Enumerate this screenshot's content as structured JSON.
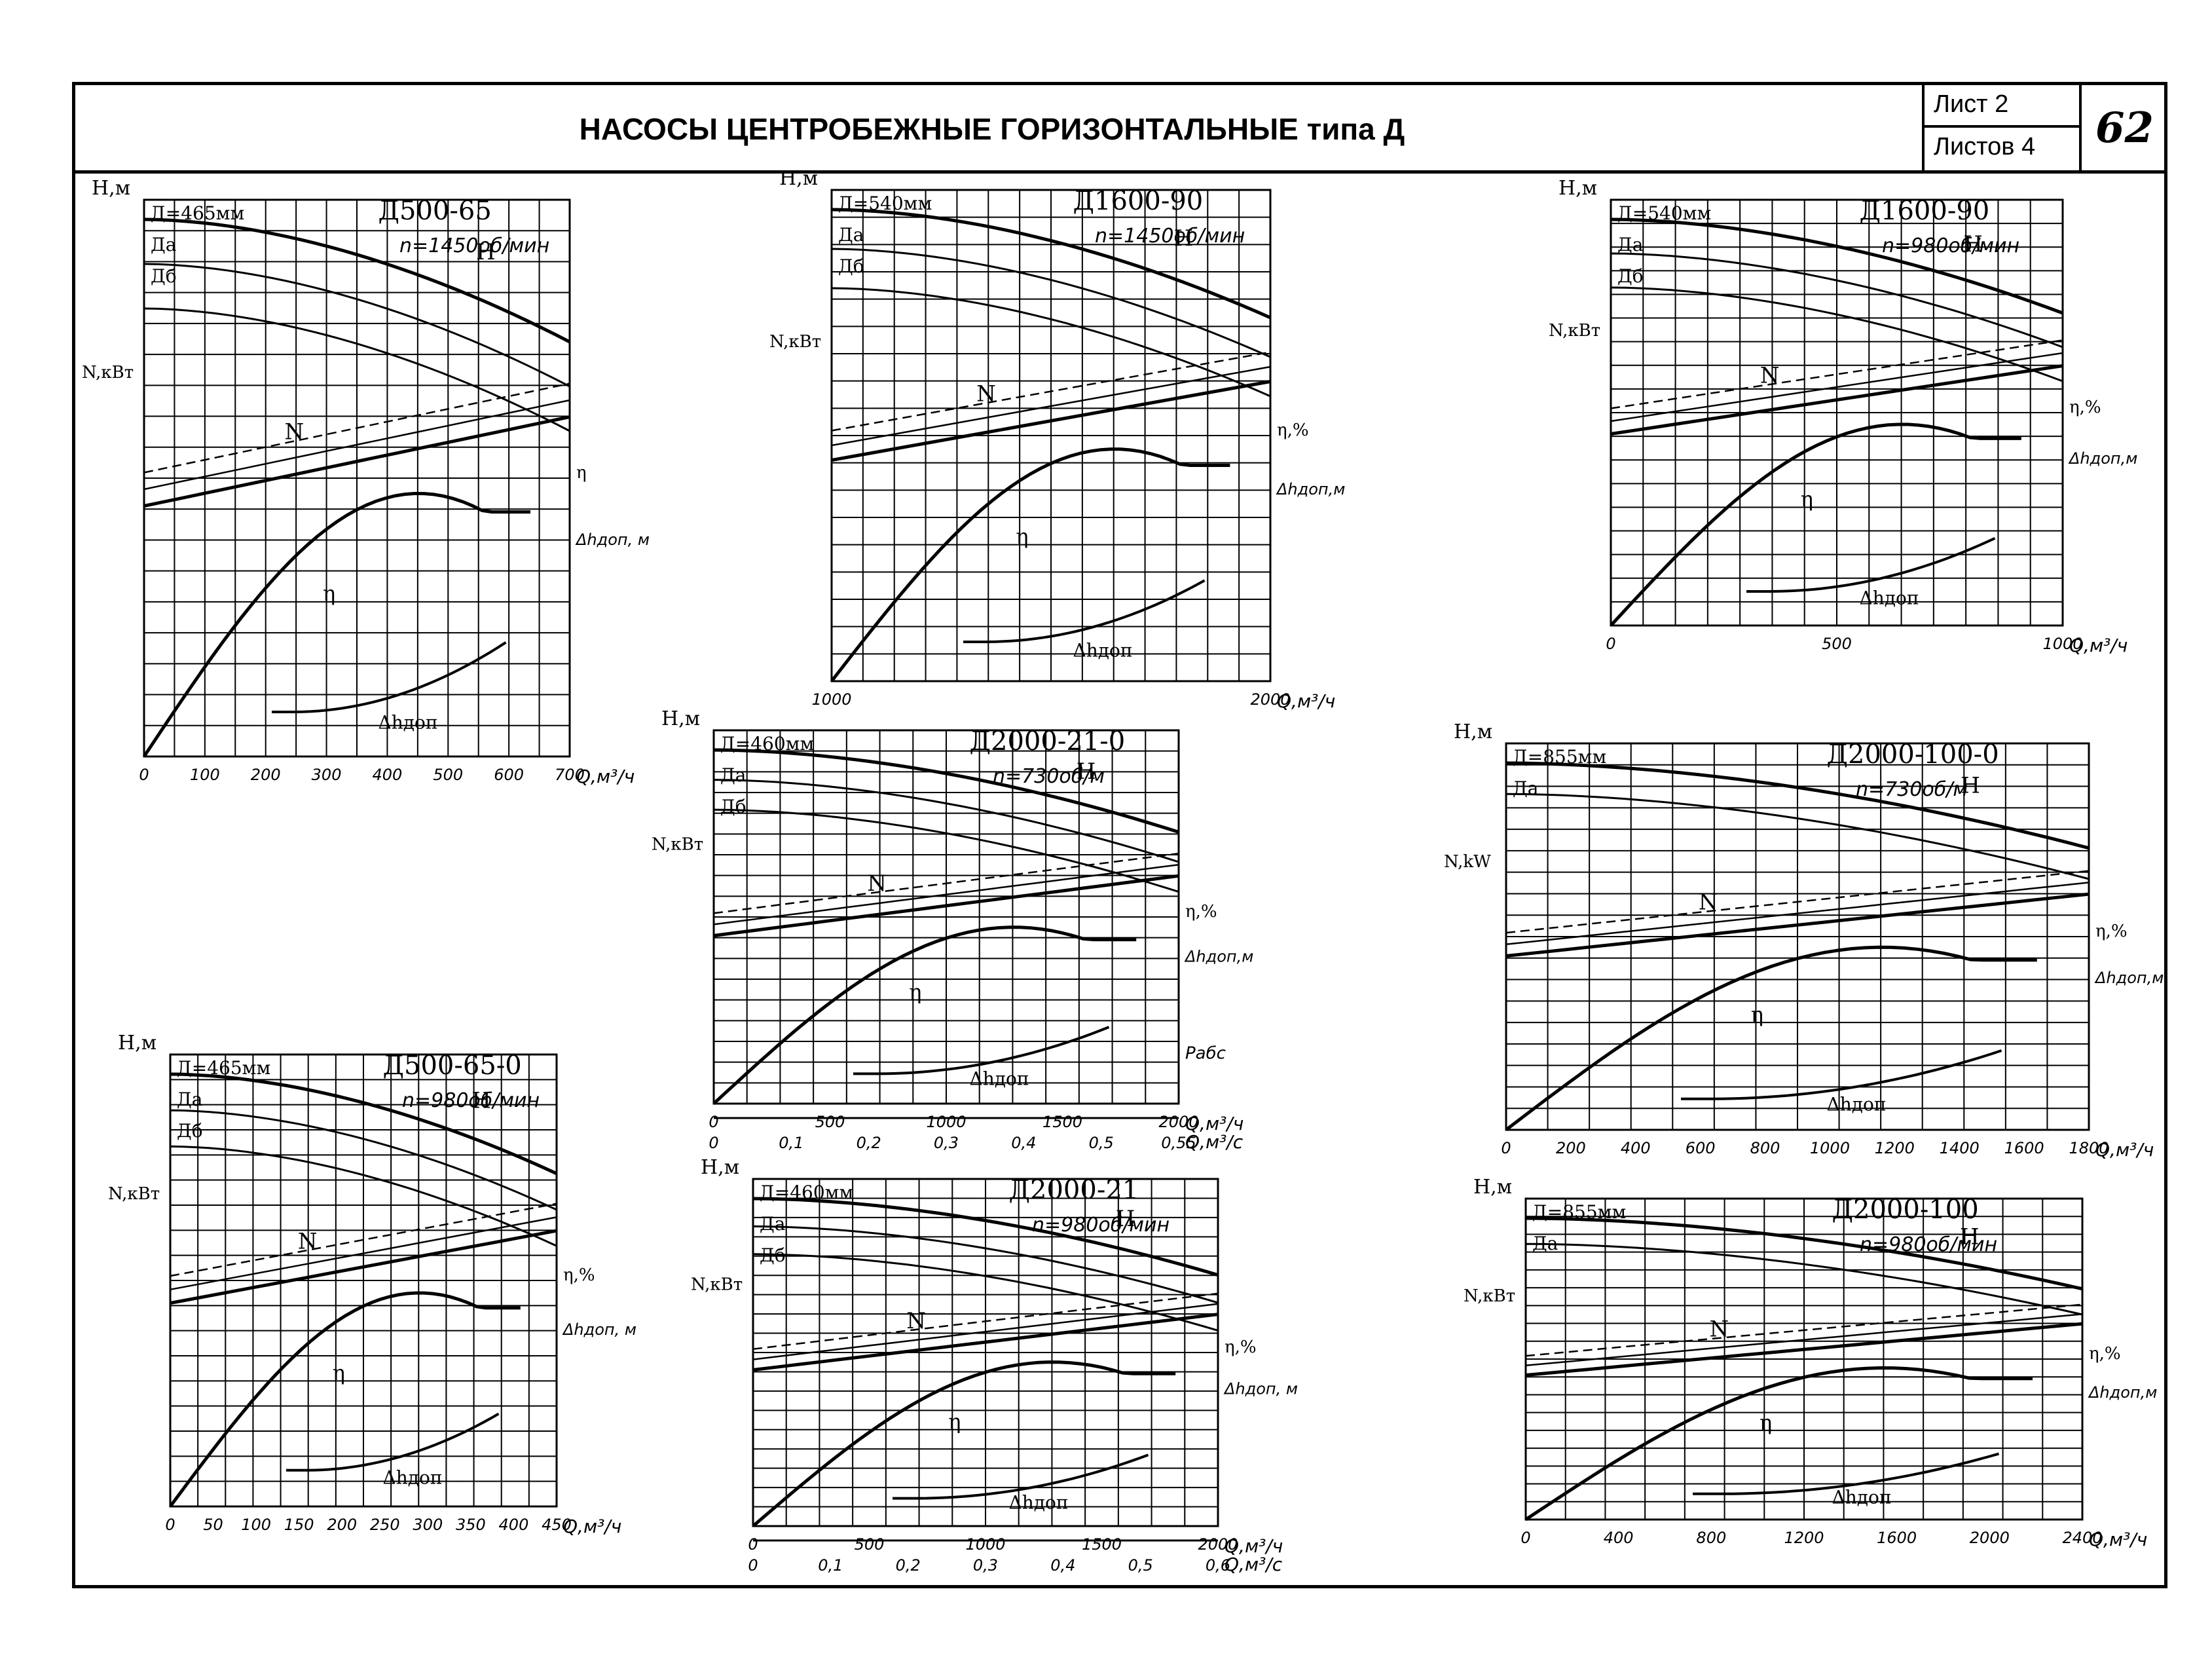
{
  "header": {
    "title": "НАСОСЫ ЦЕНТРОБЕЖНЫЕ ГОРИЗОНТАЛЬНЫЕ типа Д",
    "sheet_label": "Лист 2",
    "sheets_total_label": "Листов 4",
    "page_number": "62"
  },
  "charts": [
    {
      "model": "Д500-65",
      "speed": "n=1450об/мин",
      "h_axis": "Н,м",
      "n_axis": "N,кВт",
      "eta_axis": "η",
      "dh_axis": "Δhдоп, м",
      "q_axis": "Q,м³/ч",
      "impellers": [
        "Д=465мм",
        "Да",
        "Дб"
      ],
      "labels": {
        "H": "Н",
        "N": "N",
        "eta": "η",
        "dh": "Δhдоп"
      },
      "q_ticks": [
        "0",
        "100",
        "200",
        "300",
        "400",
        "500",
        "600",
        "700"
      ]
    },
    {
      "model": "Д1600-90",
      "speed": "n=1450об/мин",
      "h_axis": "Н,м",
      "n_axis": "N,кВт",
      "eta_axis": "η,%",
      "dh_axis": "Δhдоп,м",
      "q_axis": "Q,м³/ч",
      "impellers": [
        "Д=540мм",
        "Да",
        "Дб"
      ],
      "labels": {
        "H": "Н",
        "N": "N",
        "eta": "η",
        "dh": "Δhдоп"
      },
      "q_ticks": [
        "1000",
        "2000"
      ]
    },
    {
      "model": "Д1600-90",
      "speed": "n=980об/мин",
      "h_axis": "Н,м",
      "n_axis": "N,кВт",
      "eta_axis": "η,%",
      "dh_axis": "Δhдоп,м",
      "q_axis": "Q,м³/ч",
      "impellers": [
        "Д=540мм",
        "Да",
        "Дб"
      ],
      "labels": {
        "H": "Н",
        "N": "N",
        "eta": "η",
        "dh": "Δhдоп"
      },
      "q_ticks": [
        "0",
        "500",
        "1000"
      ]
    },
    {
      "model": "Д2000-21-0",
      "speed": "n=730об/м",
      "h_axis": "Н,м",
      "n_axis": "N,кВт",
      "eta_axis": "η,%",
      "dh_axis": "Δhдоп,м",
      "q_axis": "Q,м³/ч",
      "q2_axis": "Q,м³/с",
      "impellers": [
        "Д=460мм",
        "Да",
        "Дб"
      ],
      "labels": {
        "H": "Н",
        "N": "N",
        "eta": "η",
        "dh": "Δhдоп",
        "extra": "Рабс"
      },
      "q_ticks": [
        "0",
        "500",
        "1000",
        "1500",
        "2000"
      ],
      "q2_ticks": [
        "0",
        "0,1",
        "0,2",
        "0,3",
        "0,4",
        "0,5",
        "0,55"
      ]
    },
    {
      "model": "Д2000-100-0",
      "speed": "n=730об/м",
      "h_axis": "Н,м",
      "n_axis": "N,kW",
      "eta_axis": "η,%",
      "dh_axis": "Δhдоп,м",
      "q_axis": "Q,м³/ч",
      "impellers": [
        "Д=855мм",
        "Да"
      ],
      "labels": {
        "H": "Н",
        "N": "N",
        "eta": "η",
        "dh": "Δhдоп"
      },
      "q_ticks": [
        "0",
        "200",
        "400",
        "600",
        "800",
        "1000",
        "1200",
        "1400",
        "1600",
        "1800"
      ]
    },
    {
      "model": "Д500-65-0",
      "speed": "n=980об/мин",
      "h_axis": "Н,м",
      "n_axis": "N,кВт",
      "eta_axis": "η,%",
      "dh_axis": "Δhдоп, м",
      "q_axis": "Q,м³/ч",
      "impellers": [
        "Д=465мм",
        "Да",
        "Дб"
      ],
      "labels": {
        "H": "Н",
        "N": "N",
        "eta": "η",
        "dh": "Δhдоп"
      },
      "q_ticks": [
        "0",
        "50",
        "100",
        "150",
        "200",
        "250",
        "300",
        "350",
        "400",
        "450"
      ]
    },
    {
      "model": "Д2000-21",
      "speed": "n=980об/мин",
      "h_axis": "Н,м",
      "n_axis": "N,кВт",
      "eta_axis": "η,%",
      "dh_axis": "Δhдоп, м",
      "q_axis": "Q,м³/ч",
      "q2_axis": "Q,м³/с",
      "impellers": [
        "Д=460мм",
        "Да",
        "Дб"
      ],
      "labels": {
        "H": "Н",
        "N": "N",
        "eta": "η",
        "dh": "Δhдоп"
      },
      "q_ticks": [
        "0",
        "500",
        "1000",
        "1500",
        "2000"
      ],
      "q2_ticks": [
        "0",
        "0,1",
        "0,2",
        "0,3",
        "0,4",
        "0,5",
        "0,6"
      ]
    },
    {
      "model": "Д2000-100",
      "speed": "n=980об/мин",
      "h_axis": "Н,м",
      "n_axis": "N,кВт",
      "eta_axis": "η,%",
      "dh_axis": "Δhдоп,м",
      "q_axis": "Q,м³/ч",
      "impellers": [
        "Д=855мм",
        "Да"
      ],
      "labels": {
        "H": "Н",
        "N": "N",
        "eta": "η",
        "dh": "Δhдоп"
      },
      "q_ticks": [
        "0",
        "400",
        "800",
        "1200",
        "1600",
        "2000",
        "2400"
      ]
    }
  ]
}
